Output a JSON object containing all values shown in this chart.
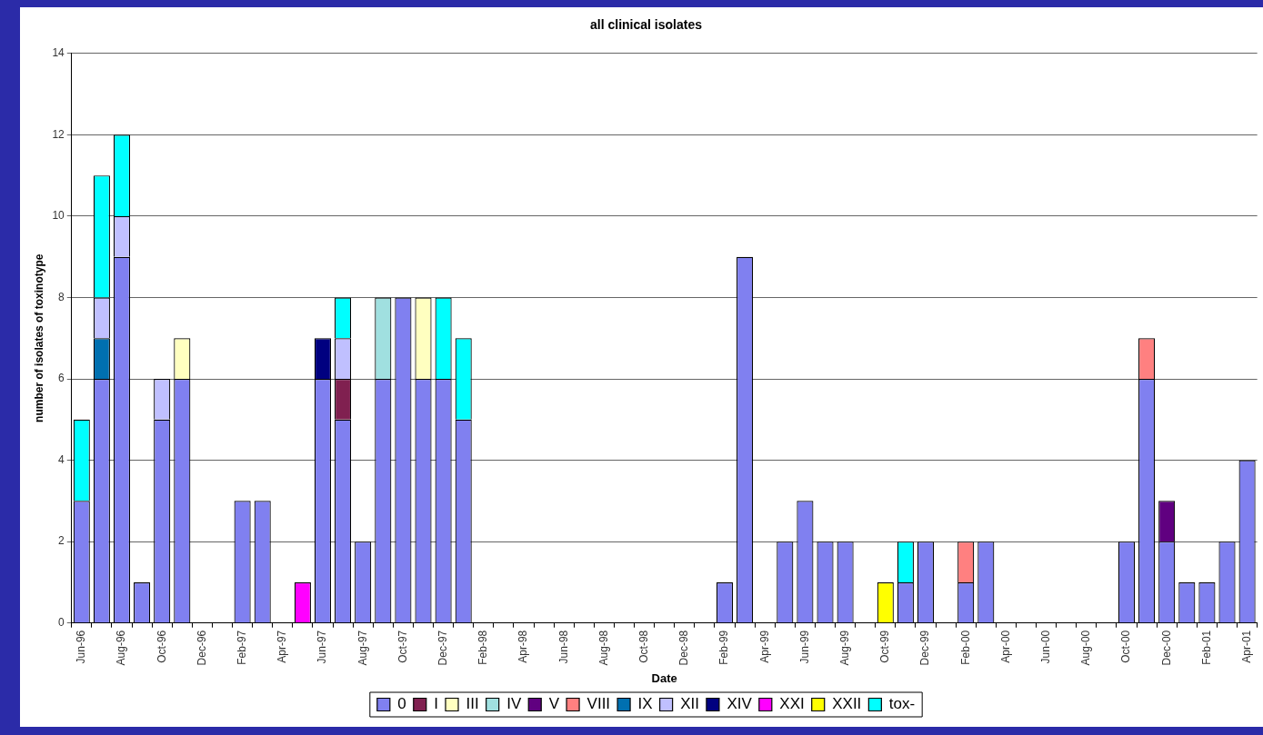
{
  "chart_data": {
    "type": "bar",
    "title": "all clinical isolates",
    "xlabel": "Date",
    "ylabel": "number of isolates of toxinotype",
    "categories": [
      "Jun-96",
      null,
      "Aug-96",
      null,
      "Oct-96",
      null,
      "Dec-96",
      null,
      "Feb-97",
      null,
      "Apr-97",
      null,
      "Jun-97",
      null,
      "Aug-97",
      null,
      "Oct-97",
      null,
      "Dec-97",
      null,
      "Feb-98",
      null,
      "Apr-98",
      null,
      "Jun-98",
      null,
      "Aug-98",
      null,
      "Oct-98",
      null,
      "Dec-98",
      null,
      "Feb-99",
      null,
      "Apr-99",
      null,
      "Jun-99",
      null,
      "Aug-99",
      null,
      "Oct-99",
      null,
      "Dec-99",
      null,
      "Feb-00",
      null,
      "Apr-00",
      null,
      "Jun-00",
      null,
      "Aug-00",
      null,
      "Oct-00",
      null,
      "Dec-00",
      null,
      "Feb-01",
      null,
      "Apr-01"
    ],
    "stacked": true,
    "ylim": [
      0,
      14
    ],
    "yticks": [
      0,
      2,
      4,
      6,
      8,
      10,
      12,
      14
    ],
    "grid": "y",
    "legend": "bottom",
    "series": [
      {
        "name": "0",
        "color": "#8080f0",
        "values": [
          3,
          6,
          9,
          1,
          5,
          6,
          null,
          null,
          3,
          3,
          null,
          null,
          6,
          5,
          2,
          6,
          8,
          6,
          6,
          5,
          null,
          null,
          null,
          null,
          null,
          null,
          null,
          null,
          null,
          null,
          null,
          null,
          1,
          9,
          null,
          2,
          3,
          2,
          2,
          null,
          null,
          1,
          2,
          null,
          1,
          2,
          null,
          null,
          null,
          null,
          null,
          null,
          2,
          6,
          2,
          1,
          1,
          2,
          4
        ]
      },
      {
        "name": "I",
        "color": "#802050",
        "values": [
          null,
          null,
          null,
          null,
          null,
          null,
          null,
          null,
          null,
          null,
          null,
          null,
          null,
          1,
          null,
          null,
          null,
          null,
          null,
          null,
          null,
          null,
          null,
          null,
          null,
          null,
          null,
          null,
          null,
          null,
          null,
          null,
          null,
          null,
          null,
          null,
          null,
          null,
          null,
          null,
          null,
          null,
          null,
          null,
          null,
          null,
          null,
          null,
          null,
          null,
          null,
          null,
          null,
          null,
          null,
          null,
          null,
          null,
          null
        ]
      },
      {
        "name": "III",
        "color": "#ffffc0",
        "values": [
          null,
          null,
          null,
          null,
          null,
          1,
          null,
          null,
          null,
          null,
          null,
          null,
          null,
          null,
          null,
          null,
          null,
          2,
          null,
          null,
          null,
          null,
          null,
          null,
          null,
          null,
          null,
          null,
          null,
          null,
          null,
          null,
          null,
          null,
          null,
          null,
          null,
          null,
          null,
          null,
          null,
          null,
          null,
          null,
          null,
          null,
          null,
          null,
          null,
          null,
          null,
          null,
          null,
          null,
          null,
          null,
          null,
          null,
          null
        ]
      },
      {
        "name": "IV",
        "color": "#a0e0e0",
        "values": [
          null,
          null,
          null,
          null,
          null,
          null,
          null,
          null,
          null,
          null,
          null,
          null,
          null,
          null,
          null,
          2,
          null,
          null,
          null,
          null,
          null,
          null,
          null,
          null,
          null,
          null,
          null,
          null,
          null,
          null,
          null,
          null,
          null,
          null,
          null,
          null,
          null,
          null,
          null,
          null,
          null,
          null,
          null,
          null,
          null,
          null,
          null,
          null,
          null,
          null,
          null,
          null,
          null,
          null,
          null,
          null,
          null,
          null,
          null
        ]
      },
      {
        "name": "V",
        "color": "#600080",
        "values": [
          null,
          null,
          null,
          null,
          null,
          null,
          null,
          null,
          null,
          null,
          null,
          null,
          null,
          null,
          null,
          null,
          null,
          null,
          null,
          null,
          null,
          null,
          null,
          null,
          null,
          null,
          null,
          null,
          null,
          null,
          null,
          null,
          null,
          null,
          null,
          null,
          null,
          null,
          null,
          null,
          null,
          null,
          null,
          null,
          null,
          null,
          null,
          null,
          null,
          null,
          null,
          null,
          null,
          null,
          1,
          null,
          null,
          null,
          null
        ]
      },
      {
        "name": "VIII",
        "color": "#ff8080",
        "values": [
          null,
          null,
          null,
          null,
          null,
          null,
          null,
          null,
          null,
          null,
          null,
          null,
          null,
          null,
          null,
          null,
          null,
          null,
          null,
          null,
          null,
          null,
          null,
          null,
          null,
          null,
          null,
          null,
          null,
          null,
          null,
          null,
          null,
          null,
          null,
          null,
          null,
          null,
          null,
          null,
          null,
          null,
          null,
          null,
          1,
          null,
          null,
          null,
          null,
          null,
          null,
          null,
          null,
          1,
          null,
          null,
          null,
          null,
          null
        ]
      },
      {
        "name": "IX",
        "color": "#0070b0",
        "values": [
          null,
          1,
          null,
          null,
          null,
          null,
          null,
          null,
          null,
          null,
          null,
          null,
          null,
          null,
          null,
          null,
          null,
          null,
          null,
          null,
          null,
          null,
          null,
          null,
          null,
          null,
          null,
          null,
          null,
          null,
          null,
          null,
          null,
          null,
          null,
          null,
          null,
          null,
          null,
          null,
          null,
          null,
          null,
          null,
          null,
          null,
          null,
          null,
          null,
          null,
          null,
          null,
          null,
          null,
          null,
          null,
          null,
          null,
          null
        ]
      },
      {
        "name": "XII",
        "color": "#c0c0ff",
        "values": [
          null,
          1,
          1,
          null,
          1,
          null,
          null,
          null,
          null,
          null,
          null,
          null,
          null,
          1,
          null,
          null,
          null,
          null,
          null,
          null,
          null,
          null,
          null,
          null,
          null,
          null,
          null,
          null,
          null,
          null,
          null,
          null,
          null,
          null,
          null,
          null,
          null,
          null,
          null,
          null,
          null,
          null,
          null,
          null,
          null,
          null,
          null,
          null,
          null,
          null,
          null,
          null,
          null,
          null,
          null,
          null,
          null,
          null,
          null
        ]
      },
      {
        "name": "XIV",
        "color": "#000080",
        "values": [
          null,
          null,
          null,
          null,
          null,
          null,
          null,
          null,
          null,
          null,
          null,
          null,
          1,
          null,
          null,
          null,
          null,
          null,
          null,
          null,
          null,
          null,
          null,
          null,
          null,
          null,
          null,
          null,
          null,
          null,
          null,
          null,
          null,
          null,
          null,
          null,
          null,
          null,
          null,
          null,
          null,
          null,
          null,
          null,
          null,
          null,
          null,
          null,
          null,
          null,
          null,
          null,
          null,
          null,
          null,
          null,
          null,
          null,
          null
        ]
      },
      {
        "name": "XXI",
        "color": "#ff00ff",
        "values": [
          null,
          null,
          null,
          null,
          null,
          null,
          null,
          null,
          null,
          null,
          null,
          1,
          null,
          null,
          null,
          null,
          null,
          null,
          null,
          null,
          null,
          null,
          null,
          null,
          null,
          null,
          null,
          null,
          null,
          null,
          null,
          null,
          null,
          null,
          null,
          null,
          null,
          null,
          null,
          null,
          null,
          null,
          null,
          null,
          null,
          null,
          null,
          null,
          null,
          null,
          null,
          null,
          null,
          null,
          null,
          null,
          null,
          null,
          null
        ]
      },
      {
        "name": "XXII",
        "color": "#ffff00",
        "values": [
          null,
          null,
          null,
          null,
          null,
          null,
          null,
          null,
          null,
          null,
          null,
          null,
          null,
          null,
          null,
          null,
          null,
          null,
          null,
          null,
          null,
          null,
          null,
          null,
          null,
          null,
          null,
          null,
          null,
          null,
          null,
          null,
          null,
          null,
          null,
          null,
          null,
          null,
          null,
          null,
          1,
          null,
          null,
          null,
          null,
          null,
          null,
          null,
          null,
          null,
          null,
          null,
          null,
          null,
          null,
          null,
          null,
          null,
          null
        ]
      },
      {
        "name": "tox-",
        "color": "#00ffff",
        "values": [
          2,
          3,
          2,
          null,
          null,
          null,
          null,
          null,
          null,
          null,
          null,
          null,
          null,
          1,
          null,
          null,
          null,
          null,
          2,
          2,
          null,
          null,
          null,
          null,
          null,
          null,
          null,
          null,
          null,
          null,
          null,
          null,
          null,
          null,
          null,
          null,
          null,
          null,
          null,
          null,
          null,
          1,
          null,
          null,
          null,
          null,
          null,
          null,
          null,
          null,
          null,
          null,
          null,
          null,
          null,
          null,
          null,
          null,
          null
        ]
      }
    ]
  }
}
